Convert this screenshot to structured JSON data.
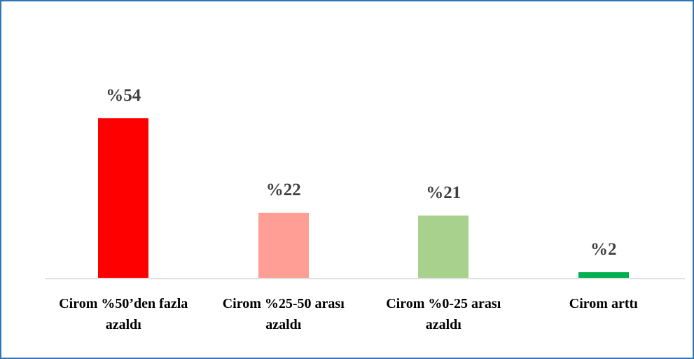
{
  "chart_data": {
    "type": "bar",
    "categories": [
      "Cirom %50’den fazla azaldı",
      "Cirom %25-50 arası azaldı",
      "Cirom %0-25 arası azaldı",
      "Cirom arttı"
    ],
    "values": [
      54,
      22,
      21,
      2
    ],
    "value_labels": [
      "%54",
      "%22",
      "%21",
      "%2"
    ],
    "colors": [
      "#ff0000",
      "#ff9e94",
      "#a9d18e",
      "#00b050"
    ]
  }
}
